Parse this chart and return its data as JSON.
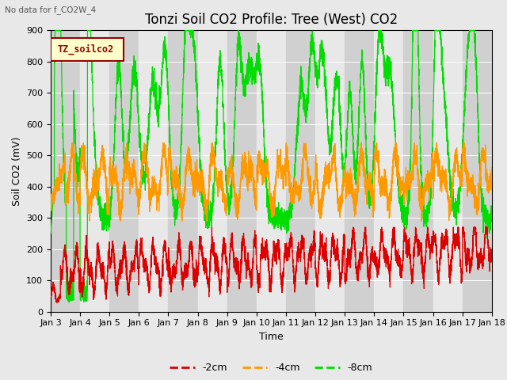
{
  "title": "Tonzi Soil CO2 Profile: Tree (West) CO2",
  "subtitle": "No data for f_CO2W_4",
  "xlabel": "Time",
  "ylabel": "Soil CO2 (mV)",
  "ylim": [
    0,
    900
  ],
  "xlim_days": [
    3,
    18
  ],
  "x_ticks": [
    3,
    4,
    5,
    6,
    7,
    8,
    9,
    10,
    11,
    12,
    13,
    14,
    15,
    16,
    17,
    18
  ],
  "x_tick_labels": [
    "Jan 3",
    "Jan 4",
    "Jan 5",
    "Jan 6",
    "Jan 7",
    "Jan 8",
    "Jan 9",
    "Jan 10",
    "Jan 11",
    "Jan 12",
    "Jan 13",
    "Jan 14",
    "Jan 15",
    "Jan 16",
    "Jan 17",
    "Jan 18"
  ],
  "legend_label": "TZ_soilco2",
  "legend_border_color": "#990000",
  "series_2cm_label": "-2cm",
  "series_2cm_color": "#dd0000",
  "series_4cm_label": "-4cm",
  "series_4cm_color": "#ff9900",
  "series_8cm_label": "-8cm",
  "series_8cm_color": "#00dd00",
  "bg_color": "#e8e8e8",
  "plot_bg": "#f0f0f0",
  "band_light": "#e8e8e8",
  "band_dark": "#d0d0d0",
  "grid_color": "#ffffff",
  "title_fontsize": 12,
  "axis_fontsize": 9,
  "tick_fontsize": 8,
  "legend_box_color": "#ffffcc"
}
